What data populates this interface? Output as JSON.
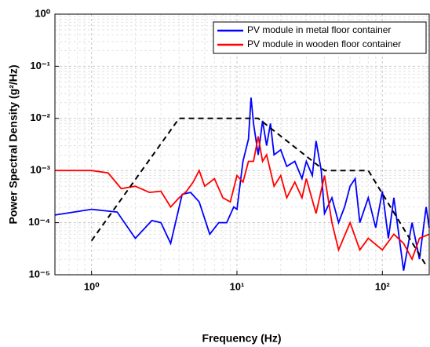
{
  "chart_data": {
    "type": "line",
    "xlabel": "Frequency (Hz)",
    "ylabel": "Power Spectral Density (g²/Hz)",
    "xscale": "log",
    "yscale": "log",
    "xlim": [
      0.56,
      210
    ],
    "ylim": [
      1e-05,
      1
    ],
    "xticks": [
      {
        "value": 1,
        "label": "10⁰"
      },
      {
        "value": 10,
        "label": "10¹"
      },
      {
        "value": 100,
        "label": "10²"
      }
    ],
    "yticks": [
      {
        "value": 1e-05,
        "label": "10⁻⁵"
      },
      {
        "value": 0.0001,
        "label": "10⁻⁴"
      },
      {
        "value": 0.001,
        "label": "10⁻³"
      },
      {
        "value": 0.01,
        "label": "10⁻²"
      },
      {
        "value": 0.1,
        "label": "10⁻¹"
      },
      {
        "value": 1,
        "label": "10⁰"
      }
    ],
    "grid": true,
    "minor_grid": true,
    "legend": "upper right",
    "series": [
      {
        "name": "PV module in metal floor container",
        "color": "#0000ff",
        "x": [
          0.56,
          1,
          1.5,
          2,
          2.6,
          3,
          3.5,
          4.2,
          4.8,
          5.5,
          6.5,
          7.5,
          8.5,
          9.5,
          10,
          11,
          12,
          12.5,
          13,
          14,
          15,
          16,
          17,
          18,
          20,
          22,
          25,
          28,
          30,
          33,
          35,
          38,
          40,
          45,
          50,
          55,
          60,
          65,
          70,
          80,
          90,
          100,
          110,
          120,
          140,
          160,
          180,
          200,
          210
        ],
        "values": [
          0.00014,
          0.00018,
          0.00016,
          5e-05,
          0.00011,
          0.0001,
          4e-05,
          0.00035,
          0.00038,
          0.00025,
          6e-05,
          0.0001,
          0.0001,
          0.0002,
          0.00018,
          0.0015,
          0.004,
          0.025,
          0.008,
          0.002,
          0.009,
          0.003,
          0.008,
          0.002,
          0.0025,
          0.0012,
          0.0015,
          0.0007,
          0.0015,
          0.0008,
          0.0037,
          0.001,
          0.00015,
          0.0003,
          0.0001,
          0.0002,
          0.0005,
          0.0007,
          0.0001,
          0.0003,
          8e-05,
          0.0004,
          5e-05,
          0.0003,
          1.2e-05,
          0.0001,
          2e-05,
          0.0002,
          8e-05
        ]
      },
      {
        "name": "PV module in wooden floor container",
        "color": "#ff0000",
        "x": [
          0.56,
          1,
          1.3,
          1.6,
          2,
          2.5,
          3,
          3.5,
          4,
          4.5,
          5,
          5.5,
          6,
          7,
          8,
          9,
          10,
          11,
          12,
          13,
          14,
          15,
          16,
          18,
          20,
          22,
          25,
          28,
          30,
          35,
          40,
          45,
          50,
          60,
          70,
          80,
          100,
          120,
          140,
          160,
          180,
          210
        ],
        "values": [
          0.001,
          0.001,
          0.0009,
          0.00045,
          0.0005,
          0.00038,
          0.0004,
          0.0002,
          0.0003,
          0.0004,
          0.0006,
          0.001,
          0.0005,
          0.0007,
          0.0003,
          0.00025,
          0.0008,
          0.0006,
          0.0015,
          0.0015,
          0.0045,
          0.0015,
          0.002,
          0.0005,
          0.0008,
          0.0003,
          0.0006,
          0.0003,
          0.0007,
          0.00015,
          0.0008,
          0.0001,
          3e-05,
          0.0001,
          3e-05,
          5e-05,
          3e-05,
          6e-05,
          4e-05,
          2e-05,
          5e-05,
          6e-05
        ]
      },
      {
        "color": "#000000",
        "dash": true,
        "x": [
          1,
          4,
          14,
          40,
          80,
          200
        ],
        "values": [
          4.5e-05,
          0.01,
          0.01,
          0.001,
          0.001,
          1.5e-05
        ]
      }
    ]
  }
}
